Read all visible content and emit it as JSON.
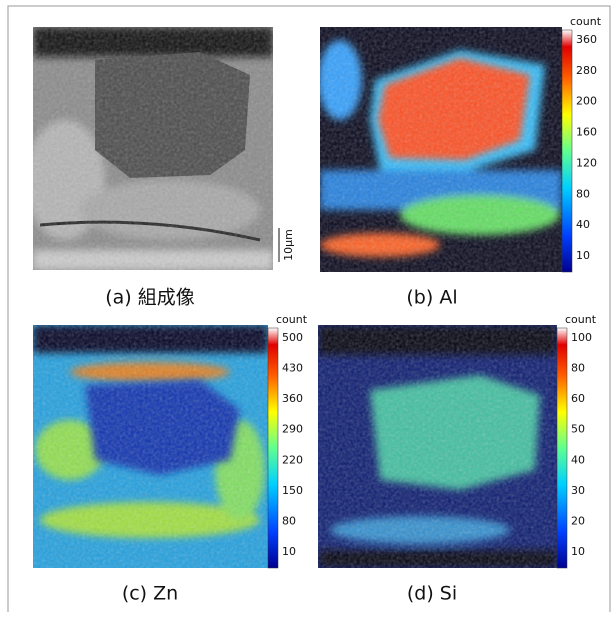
{
  "panels": [
    {
      "caption": "(a) 組成像",
      "scale_bar": "10μm"
    },
    {
      "caption": "(b) Al",
      "colorbar": {
        "title": "count",
        "ticks": [
          360,
          280,
          200,
          160,
          120,
          80,
          40,
          10
        ]
      }
    },
    {
      "caption": "(c) Zn",
      "colorbar": {
        "title": "count",
        "ticks": [
          500,
          430,
          360,
          290,
          220,
          150,
          80,
          10
        ]
      }
    },
    {
      "caption": "(d) Si",
      "colorbar": {
        "title": "count",
        "ticks": [
          100,
          80,
          60,
          50,
          40,
          30,
          20,
          10
        ]
      }
    }
  ]
}
